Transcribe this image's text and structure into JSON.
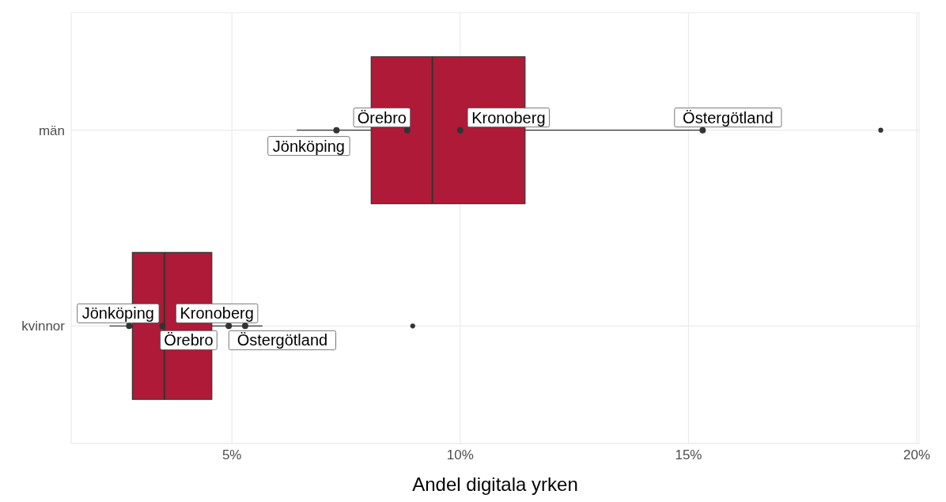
{
  "chart_data": {
    "type": "box",
    "orientation": "horizontal",
    "xlabel": "Andel digitala yrken",
    "categories": [
      "män",
      "kvinnor"
    ],
    "boxes": [
      {
        "low": 6.42,
        "q1": 8.05,
        "median": 9.39,
        "q3": 11.42,
        "high": 15.31,
        "outliers": [
          19.21
        ]
      },
      {
        "low": 2.32,
        "q1": 2.82,
        "median": 3.52,
        "q3": 4.56,
        "high": 5.67,
        "outliers": [
          8.96
        ]
      }
    ],
    "color": "#ae1a37",
    "series": [
      {
        "type": "scatter",
        "name": "Jönköping",
        "color": "#333333",
        "x": [
          "män",
          "kvinnor"
        ],
        "values": [
          7.29,
          2.75
        ]
      },
      {
        "type": "scatter",
        "name": "Örebro",
        "color": "#333333",
        "x": [
          "män",
          "kvinnor"
        ],
        "values": [
          8.84,
          3.48
        ]
      },
      {
        "type": "scatter",
        "name": "Kronoberg",
        "color": "#333333",
        "x": [
          "män",
          "kvinnor"
        ],
        "values": [
          10.0,
          4.93
        ]
      },
      {
        "type": "scatter",
        "name": "Östergötland",
        "color": "#333333",
        "x": [
          "män",
          "kvinnor"
        ],
        "values": [
          15.31,
          5.29
        ]
      }
    ],
    "xlim": [
      1.48,
      20.05
    ],
    "xticks": [
      {
        "value": 5,
        "label": "5%"
      },
      {
        "value": 10,
        "label": "10%"
      },
      {
        "value": 15,
        "label": "15%"
      },
      {
        "value": 20,
        "label": "20%"
      }
    ],
    "grid": true,
    "legend": false
  }
}
